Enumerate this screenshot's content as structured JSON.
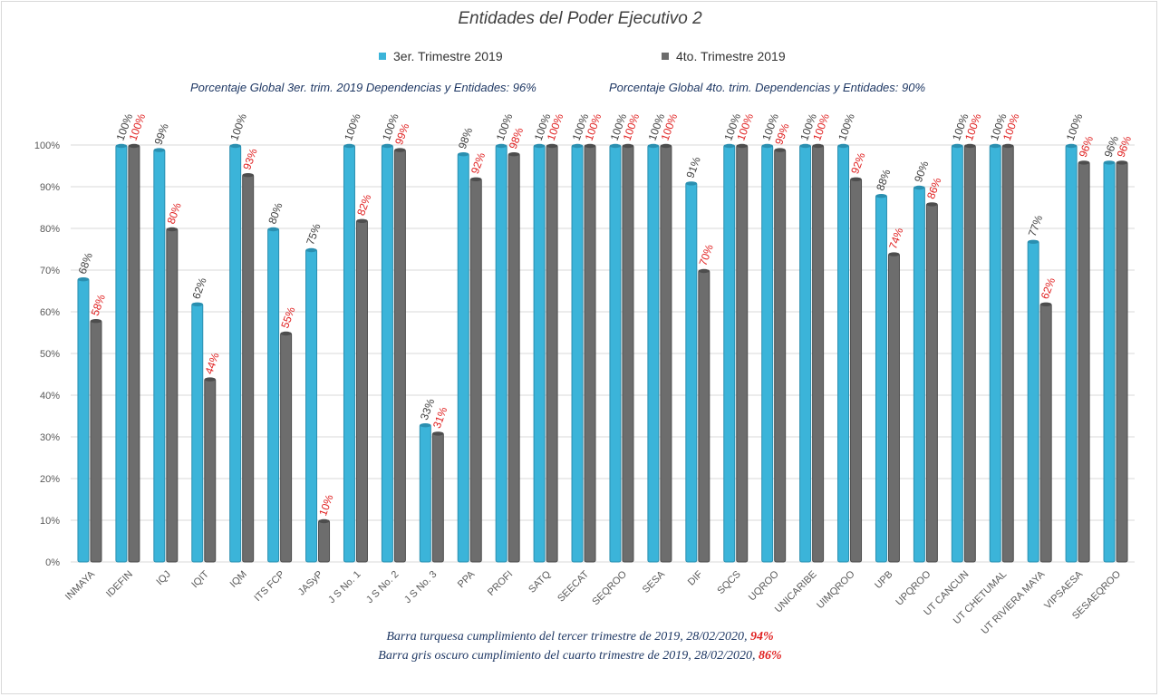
{
  "chart_data": {
    "type": "bar",
    "title": "Entidades del Poder Ejecutivo 2",
    "categories": [
      "INMAYA",
      "IDEFIN",
      "IQJ",
      "IQIT",
      "IQM",
      "ITS FCP",
      "JASyP",
      "J S No. 1",
      "J S No. 2",
      "J S No. 3",
      "PPA",
      "PROFI",
      "SATQ",
      "SEECAT",
      "SEQROO",
      "SESA",
      "DIF",
      "SQCS",
      "UQROO",
      "UNICARIBE",
      "UIMQROO",
      "UPB",
      "UPQROO",
      "UT CANCUN",
      "UT CHETUMAL",
      "UT RIVIERA MAYA",
      "VIPSAESA",
      "SESAEQROO"
    ],
    "series": [
      {
        "name": "3er. Trimestre 2019",
        "color": "#3bb4d9",
        "label_color": "#404040",
        "values": [
          68,
          100,
          99,
          62,
          100,
          80,
          75,
          100,
          100,
          33,
          98,
          100,
          100,
          100,
          100,
          100,
          91,
          100,
          100,
          100,
          100,
          88,
          90,
          100,
          100,
          77,
          100,
          96
        ]
      },
      {
        "name": "4to. Trimestre 2019",
        "color": "#6d6d6d",
        "label_color": "#e02020",
        "values": [
          58,
          100,
          80,
          44,
          93,
          55,
          10,
          82,
          99,
          31,
          92,
          98,
          100,
          100,
          100,
          100,
          70,
          100,
          99,
          100,
          92,
          74,
          86,
          100,
          100,
          62,
          96,
          96
        ]
      }
    ],
    "ylim": [
      0,
      100
    ],
    "yticks": [
      "0%",
      "10%",
      "20%",
      "30%",
      "40%",
      "50%",
      "60%",
      "70%",
      "80%",
      "90%",
      "100%"
    ],
    "grid": true,
    "legend": "top"
  },
  "global_text": {
    "q3": "Porcentaje Global 3er. trim. 2019 Dependencias y Entidades: 96%",
    "q4": "Porcentaje Global  4to. trim. Dependencias y Entidades: 90%"
  },
  "footer": {
    "line1": "Barra turquesa cumplimiento del tercer trimestre de 2019,  28/02/2020,",
    "line1_pct": "94%",
    "line2": "Barra gris oscuro cumplimiento del cuarto trimestre de 2019,  28/02/2020,",
    "line2_pct": "86%"
  }
}
